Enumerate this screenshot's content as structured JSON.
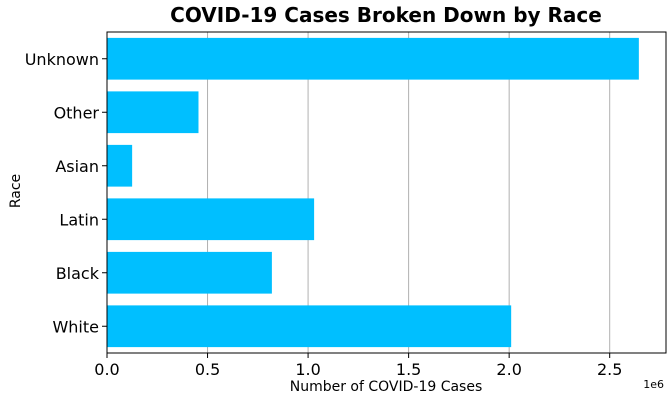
{
  "chart_data": {
    "type": "bar",
    "orientation": "horizontal",
    "title": "COVID-19 Cases Broken Down by Race",
    "xlabel": "Number of COVID-19 Cases",
    "ylabel": "Race",
    "x_offset_label": "1e6",
    "categories": [
      "White",
      "Black",
      "Latin",
      "Asian",
      "Other",
      "Unknown"
    ],
    "values": [
      2010000,
      820000,
      1030000,
      125000,
      455000,
      2645000
    ],
    "xlim": [
      0,
      2780000
    ],
    "x_ticks": [
      0,
      500000,
      1000000,
      1500000,
      2000000,
      2500000
    ],
    "x_tick_labels": [
      "0.0",
      "0.5",
      "1.0",
      "1.5",
      "2.0",
      "2.5"
    ],
    "bar_color": "#00bfff",
    "grid": "x-axis vertical lines"
  }
}
